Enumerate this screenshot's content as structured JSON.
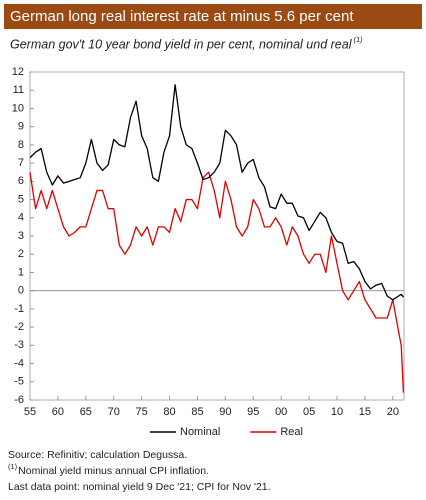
{
  "chart_data": {
    "type": "line",
    "title": "German long real interest rate at minus 5.6 per cent",
    "subtitle": "German gov't 10 year bond yield in per cent, nominal und real",
    "subtitle_note": "(1)",
    "footnotes": [
      {
        "text": "Source: Refinitiv; calculation Degussa."
      },
      {
        "marker": "(1)",
        "text": "Nominal yield minus annual CPI inflation."
      },
      {
        "text": "Last data point: nominal yield 9 Dec '21; CPI for Nov '21."
      }
    ],
    "x": [
      1955,
      1956,
      1957,
      1958,
      1959,
      1960,
      1961,
      1962,
      1963,
      1964,
      1965,
      1966,
      1967,
      1968,
      1969,
      1970,
      1971,
      1972,
      1973,
      1974,
      1975,
      1976,
      1977,
      1978,
      1979,
      1980,
      1981,
      1982,
      1983,
      1984,
      1985,
      1986,
      1987,
      1988,
      1989,
      1990,
      1991,
      1992,
      1993,
      1994,
      1995,
      1996,
      1997,
      1998,
      1999,
      2000,
      2001,
      2002,
      2003,
      2004,
      2005,
      2006,
      2007,
      2008,
      2009,
      2010,
      2011,
      2012,
      2013,
      2014,
      2015,
      2016,
      2017,
      2018,
      2019,
      2020,
      2021,
      2021.5,
      2021.9
    ],
    "series": [
      {
        "name": "Nominal",
        "color": "#000000",
        "values": [
          7.3,
          7.6,
          7.8,
          6.5,
          5.8,
          6.3,
          5.9,
          6.0,
          6.1,
          6.2,
          7.0,
          8.3,
          7.0,
          6.6,
          6.9,
          8.3,
          8.0,
          7.9,
          9.5,
          10.4,
          8.5,
          7.8,
          6.2,
          6.0,
          7.6,
          8.5,
          11.3,
          9.0,
          8.0,
          7.8,
          7.0,
          6.1,
          6.2,
          6.5,
          7.0,
          8.8,
          8.5,
          8.0,
          6.5,
          7.0,
          7.2,
          6.2,
          5.7,
          4.6,
          4.5,
          5.3,
          4.8,
          4.8,
          4.1,
          4.0,
          3.3,
          3.8,
          4.3,
          4.0,
          3.2,
          2.7,
          2.6,
          1.5,
          1.6,
          1.2,
          0.5,
          0.1,
          0.3,
          0.4,
          -0.3,
          -0.5,
          -0.3,
          -0.2,
          -0.35
        ]
      },
      {
        "name": "Real",
        "color": "#e00000",
        "values": [
          6.5,
          4.5,
          5.5,
          4.5,
          5.5,
          4.5,
          3.5,
          3.0,
          3.2,
          3.5,
          3.5,
          4.5,
          5.5,
          5.5,
          4.5,
          4.5,
          2.5,
          2.0,
          2.5,
          3.5,
          3.0,
          3.5,
          2.5,
          3.5,
          3.5,
          3.2,
          4.5,
          3.8,
          5.0,
          5.0,
          4.5,
          6.2,
          6.5,
          5.5,
          4.0,
          6.0,
          5.0,
          3.5,
          3.0,
          3.5,
          5.0,
          4.5,
          3.5,
          3.5,
          4.0,
          3.5,
          2.5,
          3.5,
          3.0,
          2.0,
          1.5,
          2.0,
          2.0,
          1.0,
          3.0,
          1.5,
          0.0,
          -0.5,
          0.0,
          0.5,
          -0.5,
          -1.0,
          -1.5,
          -1.5,
          -1.5,
          -0.5,
          -2.2,
          -3.0,
          -5.6
        ]
      }
    ],
    "xlim": [
      1955,
      2022
    ],
    "xticks": [
      {
        "value": 1955,
        "label": "55"
      },
      {
        "value": 1960,
        "label": "60"
      },
      {
        "value": 1965,
        "label": "65"
      },
      {
        "value": 1970,
        "label": "70"
      },
      {
        "value": 1975,
        "label": "75"
      },
      {
        "value": 1980,
        "label": "80"
      },
      {
        "value": 1985,
        "label": "85"
      },
      {
        "value": 1990,
        "label": "90"
      },
      {
        "value": 1995,
        "label": "95"
      },
      {
        "value": 2000,
        "label": "00"
      },
      {
        "value": 2005,
        "label": "05"
      },
      {
        "value": 2010,
        "label": "10"
      },
      {
        "value": 2015,
        "label": "15"
      },
      {
        "value": 2020,
        "label": "20"
      }
    ],
    "ylim": [
      -6,
      12
    ],
    "yticks": [
      -6,
      -5,
      -4,
      -3,
      -2,
      -1,
      0,
      1,
      2,
      3,
      4,
      5,
      6,
      7,
      8,
      9,
      10,
      11,
      12
    ],
    "zero_line": true,
    "legend": "bottom",
    "title_color": "#9c4a14"
  }
}
